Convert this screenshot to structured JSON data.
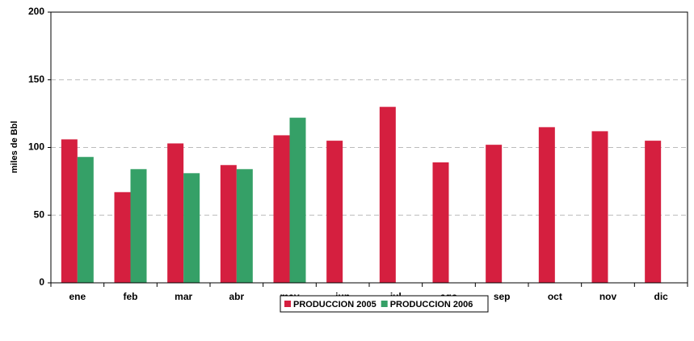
{
  "chart_data": {
    "type": "bar",
    "y_label": "miles de Bbl",
    "categories": [
      "ene",
      "feb",
      "mar",
      "abr",
      "may",
      "jun",
      "jul",
      "ago",
      "sep",
      "oct",
      "nov",
      "dic"
    ],
    "series": [
      {
        "name": "PRODUCCION 2005",
        "color": "#d51f3f",
        "values": [
          106,
          67,
          103,
          87,
          109,
          105,
          130,
          89,
          102,
          115,
          112,
          105
        ]
      },
      {
        "name": "PRODUCCION 2006",
        "color": "#35a067",
        "values": [
          93,
          84,
          81,
          84,
          122,
          null,
          null,
          null,
          null,
          null,
          null,
          null
        ]
      }
    ],
    "ylim": [
      0,
      200
    ],
    "yticks": [
      0,
      50,
      100,
      150,
      200
    ],
    "grid": true,
    "legend": "bottom"
  }
}
